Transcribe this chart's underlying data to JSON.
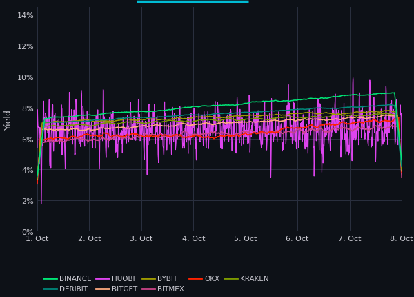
{
  "bg_color": "#0d1117",
  "grid_color": "#2a3040",
  "text_color": "#c8c8d0",
  "ylabel": "Yield",
  "yticks": [
    0,
    2,
    4,
    6,
    8,
    10,
    12,
    14
  ],
  "xtick_labels": [
    "1. Oct",
    "2. Oct",
    "3. Oct",
    "4. Oct",
    "5. Oct",
    "6. Oct",
    "7. Oct",
    "8. Oct"
  ],
  "ylim": [
    0,
    14.5
  ],
  "series": {
    "BINANCE": {
      "color": "#00e676",
      "lw": 1.1,
      "zorder": 6
    },
    "DERIBIT": {
      "color": "#00897b",
      "lw": 1.1,
      "zorder": 5
    },
    "HUOBI": {
      "color": "#dd44ee",
      "lw": 0.8,
      "zorder": 3
    },
    "BITGET": {
      "color": "#ffaa80",
      "lw": 1.0,
      "zorder": 4
    },
    "BYBIT": {
      "color": "#9e9a00",
      "lw": 1.0,
      "zorder": 4
    },
    "BITMEX": {
      "color": "#cc4488",
      "lw": 1.0,
      "zorder": 4
    },
    "OKX": {
      "color": "#ff2200",
      "lw": 1.0,
      "zorder": 4
    },
    "KRAKEN": {
      "color": "#7d9a00",
      "lw": 1.0,
      "zorder": 4
    }
  },
  "n_points": 1500,
  "seed": 7
}
